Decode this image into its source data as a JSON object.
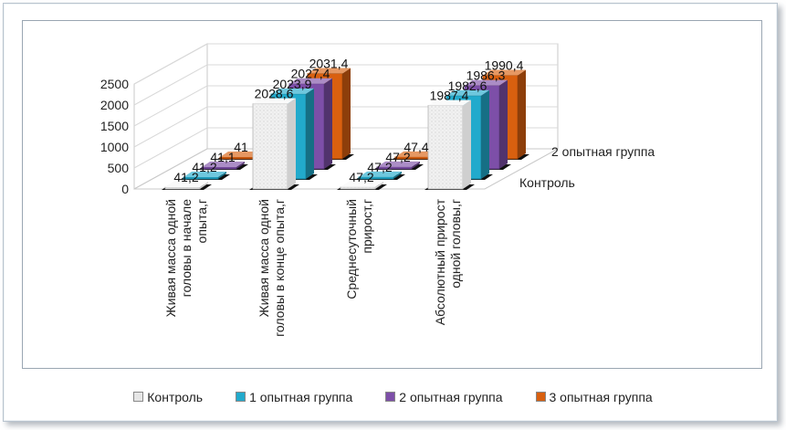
{
  "chart_data": {
    "type": "bar3d",
    "categories": [
      "Живая масса одной головы в начале опыта,г",
      "Живая масса одной головы в конце опыта,г",
      "Среднесуточный прирост,г",
      "Абсолютный прирост одной головы,г"
    ],
    "category_lines": [
      [
        "Живая масса одной",
        "головы в начале",
        "опыта,г"
      ],
      [
        "Живая масса одной",
        "головы в конце опыта,г"
      ],
      [
        "Среднесуточный",
        "прирост,г"
      ],
      [
        "Абсолютный прирост",
        "одной головы,г"
      ]
    ],
    "series": [
      {
        "name": "Контроль",
        "color": "#e8e8e8",
        "values": [
          41.2,
          2028.6,
          47.2,
          1987.4
        ]
      },
      {
        "name": "1 опытная группа",
        "color": "#22aacc",
        "values": [
          41.2,
          2023.9,
          47.2,
          1982.6
        ]
      },
      {
        "name": "2 опытная группа",
        "color": "#7d4fa8",
        "values": [
          41.1,
          2027.4,
          47.2,
          1986.3
        ]
      },
      {
        "name": "3 опытная группа",
        "color": "#d9600f",
        "values": [
          41,
          2031.4,
          47.4,
          1990.4
        ]
      }
    ],
    "labels": [
      [
        "41,2",
        "2028,6",
        "47,2",
        "1987,4"
      ],
      [
        "41,2",
        "2023,9",
        "47,2",
        "1982,6"
      ],
      [
        "41,1",
        "2027,4",
        "47,2",
        "1986,3"
      ],
      [
        "41",
        "2031,4",
        "47,4",
        "1990,4"
      ]
    ],
    "depth_labels": [
      "Контроль",
      "2 опытная группа"
    ],
    "yticks": [
      "0",
      "500",
      "1000",
      "1500",
      "2000",
      "2500"
    ],
    "ylim": [
      0,
      2500
    ]
  }
}
